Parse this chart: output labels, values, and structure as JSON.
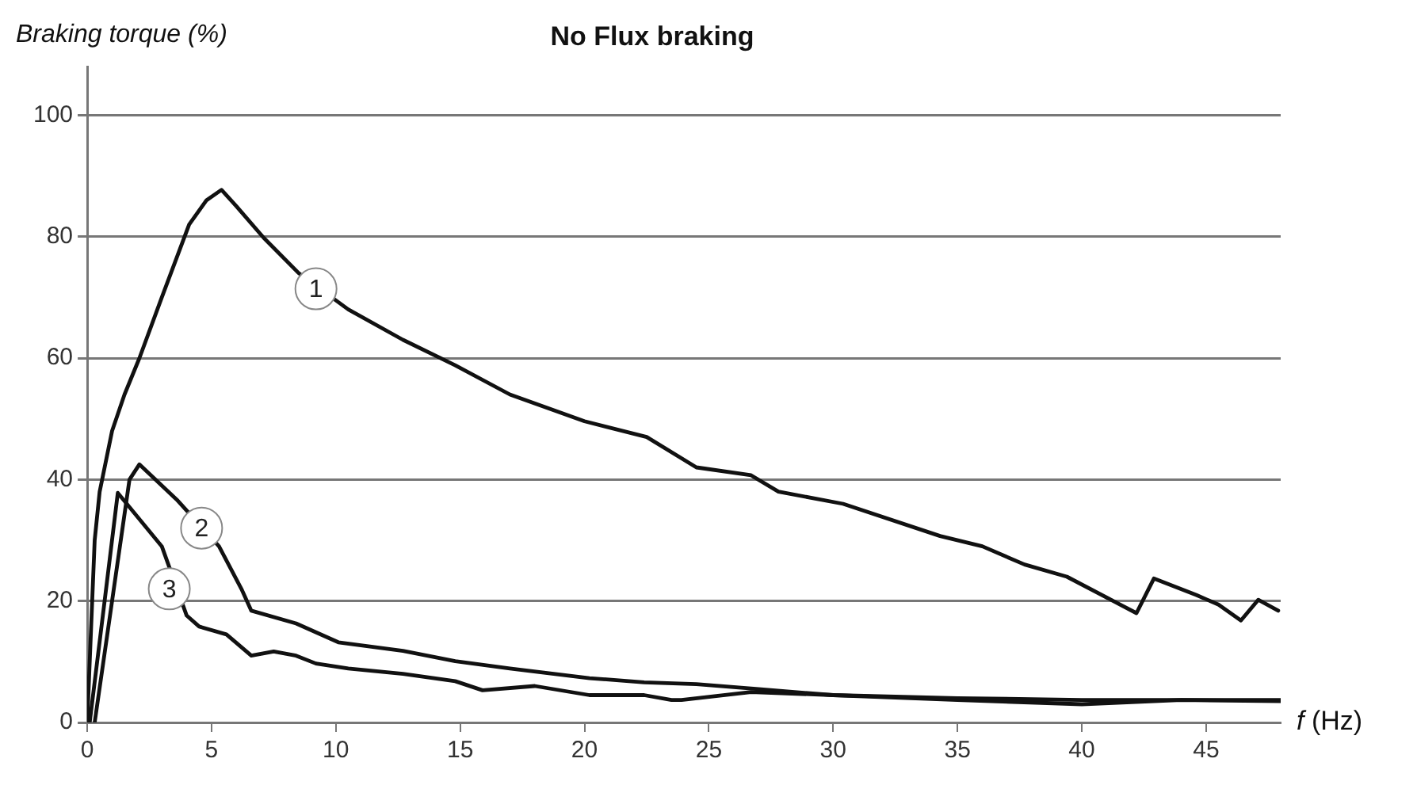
{
  "chart_data": {
    "type": "line",
    "title": "No Flux braking",
    "xlabel": "f (Hz)",
    "ylabel": "Braking torque (%)",
    "xlim": [
      0,
      48
    ],
    "ylim": [
      0,
      108
    ],
    "xticks": [
      0,
      5,
      10,
      15,
      20,
      25,
      30,
      35,
      40,
      45
    ],
    "yticks": [
      0,
      20,
      40,
      60,
      80,
      100
    ],
    "grid": "y",
    "legend": false,
    "marker": "none",
    "line_style": "solid",
    "series": [
      {
        "color": "#111111",
        "x": [
          0,
          0.3,
          0.5,
          1,
          1.5,
          2.1,
          3,
          4.1,
          4.8,
          5.4,
          6,
          7.1,
          8.5,
          10.5,
          12.7,
          14.8,
          17,
          20,
          22.5,
          24.5,
          26.7,
          27.8,
          30.4,
          34.3,
          36,
          37.7,
          39.4,
          42.2,
          42.9,
          44.6,
          45.5,
          46.4,
          47.1,
          47.9
        ],
        "values": [
          0,
          30,
          38,
          48,
          54,
          60,
          70,
          82,
          86,
          87.7,
          85,
          79.8,
          74,
          68,
          63,
          58.8,
          54,
          49.6,
          47,
          42,
          40.7,
          38,
          36,
          30.7,
          29,
          26,
          24,
          18,
          23.7,
          21,
          19.4,
          16.8,
          20.2,
          18.4
        ]
      },
      {
        "color": "#111111",
        "x": [
          0.3,
          1,
          1.7,
          2.1,
          3.6,
          5.3,
          6.2,
          6.6,
          8.4,
          10.1,
          12.7,
          14.8,
          17,
          20.2,
          22.4,
          24.5,
          27,
          30,
          35,
          40,
          44,
          48
        ],
        "values": [
          0,
          20,
          40,
          42.5,
          36.7,
          29,
          22,
          18.4,
          16.3,
          13.2,
          11.8,
          10.1,
          8.9,
          7.3,
          6.6,
          6.3,
          5.5,
          4.5,
          4,
          3.7,
          3.7,
          3.7
        ]
      },
      {
        "color": "#111111",
        "x": [
          0.1,
          0.7,
          1.23,
          3,
          4,
          4.5,
          5.6,
          6.6,
          7.5,
          8.4,
          9.2,
          10.5,
          12.7,
          14.8,
          15.9,
          18,
          20.2,
          22.4,
          23.5,
          23.9,
          26.7,
          30,
          35,
          40,
          44,
          48
        ],
        "values": [
          0,
          20,
          37.8,
          29,
          17.6,
          15.8,
          14.5,
          11,
          11.7,
          11,
          9.7,
          8.9,
          8,
          6.8,
          5.3,
          6,
          4.5,
          4.5,
          3.7,
          3.7,
          5,
          4.5,
          3.7,
          3,
          3.7,
          3.5
        ]
      }
    ],
    "annotations": [
      {
        "text": "1",
        "x": 9.2,
        "y": 71.4
      },
      {
        "text": "2",
        "x": 4.6,
        "y": 32
      },
      {
        "text": "3",
        "x": 3.3,
        "y": 22
      }
    ]
  }
}
